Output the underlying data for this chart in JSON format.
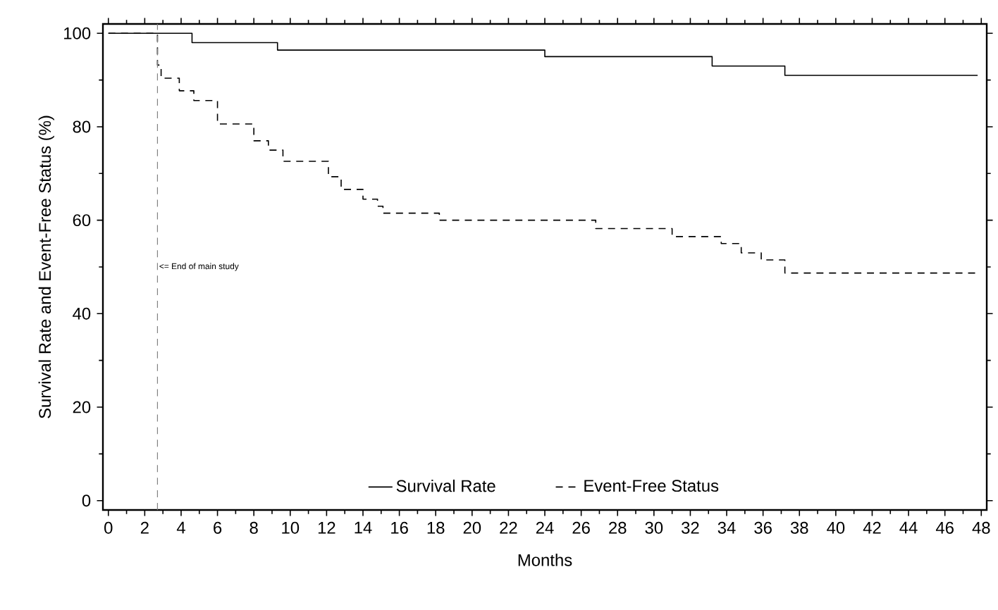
{
  "chart_data": {
    "type": "step",
    "xlabel": "Months",
    "ylabel": "Survival Rate and Event-Free Status (%)",
    "xlim": [
      -0.3,
      48.3
    ],
    "ylim": [
      -2,
      102
    ],
    "xticks": [
      0,
      2,
      4,
      6,
      8,
      10,
      12,
      14,
      16,
      18,
      20,
      22,
      24,
      26,
      28,
      30,
      32,
      34,
      36,
      38,
      40,
      42,
      44,
      46,
      48
    ],
    "yticks": [
      0,
      20,
      40,
      60,
      80,
      100
    ],
    "series": [
      {
        "name": "Survival Rate",
        "color": "#000000",
        "line_style": "solid",
        "x": [
          0,
          4.6,
          9.3,
          24.0,
          33.2,
          37.2,
          47.8
        ],
        "values": [
          100,
          98,
          96.4,
          95,
          93,
          91,
          91
        ]
      },
      {
        "name": "Event-Free Status",
        "color": "#000000",
        "line_style": "dashed",
        "x": [
          0,
          2.7,
          2.9,
          3.9,
          4.7,
          6.0,
          8.0,
          8.8,
          9.6,
          12.1,
          12.8,
          14.0,
          14.8,
          15.1,
          18.2,
          26.8,
          31.0,
          33.7,
          34.8,
          35.9,
          37.2,
          47.8
        ],
        "values": [
          100,
          93.2,
          90.4,
          87.7,
          85.6,
          80.6,
          77,
          75,
          72.6,
          69.3,
          66.6,
          64.5,
          63,
          61.5,
          60,
          58.2,
          56.5,
          55,
          53,
          51.5,
          48.7,
          48.7
        ]
      }
    ],
    "ref_lines": [
      {
        "axis": "x",
        "value": 2.7,
        "label": "<= End of main study",
        "color": "#808080",
        "line_style": "dashed"
      }
    ],
    "legend": "bottom",
    "grid": false,
    "marker": "none"
  }
}
